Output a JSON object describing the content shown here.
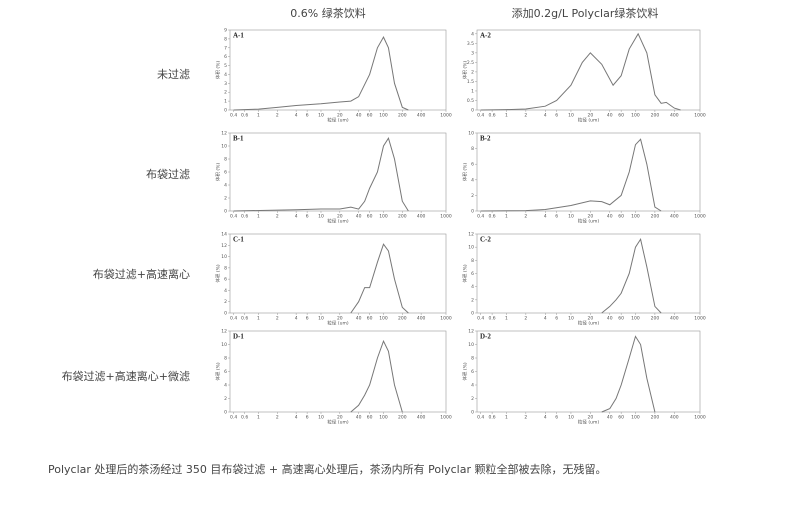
{
  "column_titles": [
    "0.6% 绿茶饮料",
    "添加0.2g/L Polyclar绿茶饮料"
  ],
  "row_labels": [
    "未过滤",
    "布袋过滤",
    "布袋过滤+高速离心",
    "布袋过滤+高速离心+微滤"
  ],
  "caption": "Polyclar 处理后的茶汤经过 350 目布袋过滤 + 高速离心处理后，茶汤内所有 Polyclar 颗粒全部被去除，无残留。",
  "chart_data": [
    {
      "type": "line",
      "title": "A-1",
      "x_label": "粒径 (um)",
      "y_label": "体积 (%)",
      "log_x": true,
      "color": "#777777",
      "x": [
        0.4,
        1,
        2,
        4,
        10,
        20,
        30,
        40,
        60,
        80,
        100,
        120,
        150,
        200,
        250
      ],
      "values": [
        0,
        0.1,
        0.3,
        0.5,
        0.7,
        0.9,
        1.0,
        1.5,
        4,
        7,
        8.2,
        7,
        3,
        0.3,
        0
      ],
      "xlim": [
        0.35,
        1000
      ],
      "ylim": [
        0,
        9
      ],
      "xticks": [
        0.4,
        0.6,
        1,
        2,
        4,
        6,
        10,
        20,
        40,
        60,
        100,
        200,
        400,
        1000
      ],
      "yticks": [
        0,
        1,
        2,
        3,
        4,
        5,
        6,
        7,
        8,
        9
      ]
    },
    {
      "type": "line",
      "title": "A-2",
      "x_label": "粒径 (um)",
      "y_label": "体积 (%)",
      "log_x": true,
      "color": "#777777",
      "x": [
        0.4,
        1,
        2,
        4,
        6,
        10,
        15,
        20,
        30,
        45,
        60,
        80,
        110,
        150,
        200,
        250,
        300,
        400,
        500
      ],
      "values": [
        0,
        0.02,
        0.05,
        0.2,
        0.5,
        1.3,
        2.5,
        3.0,
        2.4,
        1.3,
        1.8,
        3.2,
        4.0,
        3.0,
        0.8,
        0.35,
        0.4,
        0.1,
        0
      ],
      "xlim": [
        0.35,
        1000
      ],
      "ylim": [
        0,
        4.2
      ],
      "xticks": [
        0.4,
        0.6,
        1,
        2,
        4,
        6,
        10,
        20,
        40,
        60,
        100,
        200,
        400,
        1000
      ],
      "yticks": [
        0,
        0.5,
        1,
        1.5,
        2,
        2.5,
        3,
        3.5,
        4
      ]
    },
    {
      "type": "line",
      "title": "B-1",
      "x_label": "粒径 (um)",
      "y_label": "体积 (%)",
      "log_x": true,
      "color": "#777777",
      "x": [
        0.4,
        4,
        10,
        20,
        30,
        40,
        50,
        60,
        80,
        100,
        120,
        150,
        200,
        250
      ],
      "values": [
        0,
        0.2,
        0.3,
        0.3,
        0.6,
        0.3,
        1.5,
        3.5,
        6,
        10,
        11.2,
        8,
        1.5,
        0
      ],
      "xlim": [
        0.35,
        1000
      ],
      "ylim": [
        0,
        12
      ],
      "xticks": [
        0.4,
        0.6,
        1,
        2,
        4,
        6,
        10,
        20,
        40,
        60,
        100,
        200,
        400,
        1000
      ],
      "yticks": [
        0,
        2,
        4,
        6,
        8,
        10,
        12
      ]
    },
    {
      "type": "line",
      "title": "B-2",
      "x_label": "粒径 (um)",
      "y_label": "体积 (%)",
      "log_x": true,
      "color": "#777777",
      "x": [
        0.4,
        2,
        4,
        10,
        20,
        30,
        40,
        60,
        80,
        100,
        120,
        150,
        200,
        250
      ],
      "values": [
        0,
        0.05,
        0.2,
        0.7,
        1.3,
        1.2,
        0.8,
        2,
        5,
        8.5,
        9.2,
        6,
        0.5,
        0
      ],
      "xlim": [
        0.35,
        1000
      ],
      "ylim": [
        0,
        10
      ],
      "xticks": [
        0.4,
        0.6,
        1,
        2,
        4,
        6,
        10,
        20,
        40,
        60,
        100,
        200,
        400,
        1000
      ],
      "yticks": [
        0,
        2,
        4,
        6,
        8,
        10
      ]
    },
    {
      "type": "line",
      "title": "C-1",
      "x_label": "粒径 (um)",
      "y_label": "体积 (%)",
      "log_x": true,
      "color": "#777777",
      "x": [
        30,
        40,
        50,
        60,
        80,
        100,
        120,
        150,
        200,
        250
      ],
      "values": [
        0,
        2,
        4.5,
        4.5,
        9,
        12.2,
        11,
        6,
        1,
        0
      ],
      "xlim": [
        0.35,
        1000
      ],
      "ylim": [
        0,
        14
      ],
      "xticks": [
        0.4,
        0.6,
        1,
        2,
        4,
        6,
        10,
        20,
        40,
        60,
        100,
        200,
        400,
        1000
      ],
      "yticks": [
        0,
        2,
        4,
        6,
        8,
        10,
        12,
        14
      ]
    },
    {
      "type": "line",
      "title": "C-2",
      "x_label": "粒径 (um)",
      "y_label": "体积 (%)",
      "log_x": true,
      "color": "#777777",
      "x": [
        30,
        40,
        50,
        60,
        80,
        100,
        120,
        150,
        200,
        250
      ],
      "values": [
        0,
        1,
        2,
        3,
        6,
        10,
        11.2,
        7,
        1,
        0
      ],
      "xlim": [
        0.35,
        1000
      ],
      "ylim": [
        0,
        12
      ],
      "xticks": [
        0.4,
        0.6,
        1,
        2,
        4,
        6,
        10,
        20,
        40,
        60,
        100,
        200,
        400,
        1000
      ],
      "yticks": [
        0,
        2,
        4,
        6,
        8,
        10,
        12
      ]
    },
    {
      "type": "line",
      "title": "D-1",
      "x_label": "粒径 (um)",
      "y_label": "体积 (%)",
      "log_x": true,
      "color": "#777777",
      "x": [
        30,
        40,
        50,
        60,
        80,
        100,
        120,
        150,
        200
      ],
      "values": [
        0,
        1,
        2.5,
        4,
        8,
        10.5,
        9,
        4,
        0
      ],
      "xlim": [
        0.35,
        1000
      ],
      "ylim": [
        0,
        12
      ],
      "xticks": [
        0.4,
        0.6,
        1,
        2,
        4,
        6,
        10,
        20,
        40,
        60,
        100,
        200,
        400,
        1000
      ],
      "yticks": [
        0,
        2,
        4,
        6,
        8,
        10,
        12
      ]
    },
    {
      "type": "line",
      "title": "D-2",
      "x_label": "粒径 (um)",
      "y_label": "体积 (%)",
      "log_x": true,
      "color": "#777777",
      "x": [
        30,
        40,
        50,
        60,
        80,
        100,
        120,
        150,
        200
      ],
      "values": [
        0,
        0.5,
        2,
        4,
        8,
        11.2,
        10,
        5,
        0
      ],
      "xlim": [
        0.35,
        1000
      ],
      "ylim": [
        0,
        12
      ],
      "xticks": [
        0.4,
        0.6,
        1,
        2,
        4,
        6,
        10,
        20,
        40,
        60,
        100,
        200,
        400,
        1000
      ],
      "yticks": [
        0,
        2,
        4,
        6,
        8,
        10,
        12
      ]
    }
  ]
}
